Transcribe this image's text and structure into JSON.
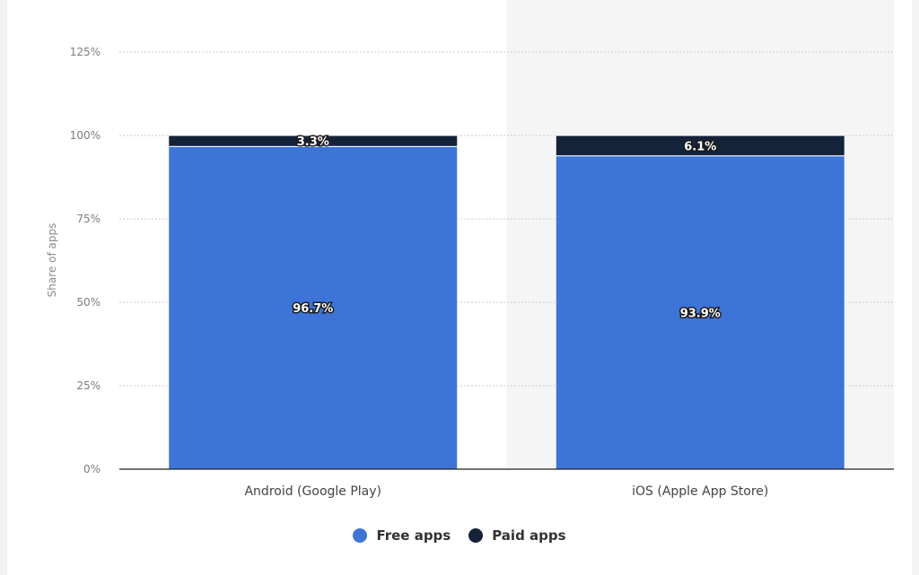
{
  "chart_data": {
    "type": "bar",
    "stacked": true,
    "categories": [
      "Android (Google Play)",
      "iOS (Apple App Store)"
    ],
    "series": [
      {
        "name": "Free apps",
        "values": [
          96.7,
          93.9
        ],
        "labels": [
          "96.7%",
          "93.9%"
        ],
        "color": "#3c74d8"
      },
      {
        "name": "Paid apps",
        "values": [
          3.3,
          6.1
        ],
        "labels": [
          "3.3%",
          "6.1%"
        ],
        "color": "#14233a"
      }
    ],
    "ylabel": "Share of apps",
    "ylim": [
      0,
      125
    ],
    "yticks": [
      "0%",
      "25%",
      "50%",
      "75%",
      "100%",
      "125%"
    ],
    "grid": true,
    "legend_position": "bottom",
    "highlighted_category": "iOS (Apple App Store)"
  }
}
